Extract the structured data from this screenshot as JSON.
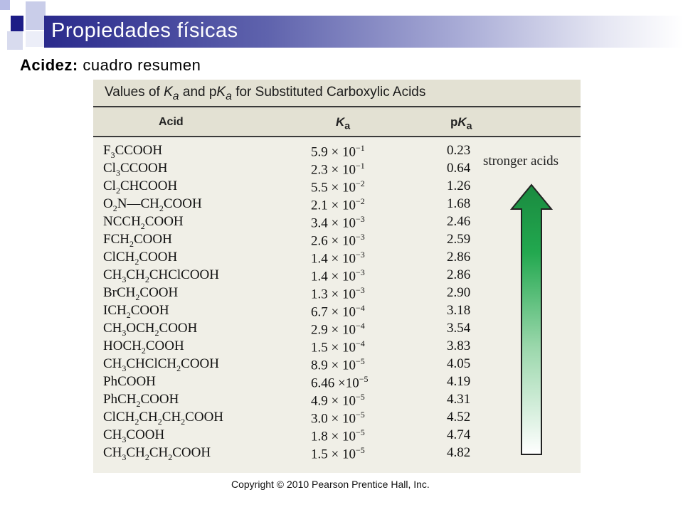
{
  "slide": {
    "title": "Propiedades  físicas",
    "subtitle_bold": "Acidez:",
    "subtitle_rest": " cuadro resumen",
    "copyright": "Copyright © 2010 Pearson Prentice Hall, Inc."
  },
  "table": {
    "title_prefix": "Values of ",
    "title_ka": "K",
    "title_ka_sub": "a",
    "title_mid": " and p",
    "title_pka": "K",
    "title_pka_sub": "a",
    "title_suffix": " for Substituted Carboxylic Acids",
    "headers": {
      "acid": "Acid",
      "ka": "K",
      "ka_sub": "a",
      "pka_p": "p",
      "pka": "K",
      "pka_sub": "a"
    },
    "annotation": "stronger acids",
    "rows": [
      {
        "acid": "F<sub>3</sub>CCOOH",
        "mant": "5.9",
        "exp": "−1",
        "pka": "0.23"
      },
      {
        "acid": "Cl<sub>3</sub>CCOOH",
        "mant": "2.3",
        "exp": "−1",
        "pka": "0.64"
      },
      {
        "acid": "Cl<sub>2</sub>CHCOOH",
        "mant": "5.5",
        "exp": "−2",
        "pka": "1.26"
      },
      {
        "acid": "O<sub>2</sub>N—CH<sub>2</sub>COOH",
        "mant": "2.1",
        "exp": "−2",
        "pka": "1.68"
      },
      {
        "acid": "NCCH<sub>2</sub>COOH",
        "mant": "3.4",
        "exp": "−3",
        "pka": "2.46"
      },
      {
        "acid": "FCH<sub>2</sub>COOH",
        "mant": "2.6",
        "exp": "−3",
        "pka": "2.59"
      },
      {
        "acid": "ClCH<sub>2</sub>COOH",
        "mant": "1.4",
        "exp": "−3",
        "pka": "2.86"
      },
      {
        "acid": "CH<sub>3</sub>CH<sub>2</sub>CHClCOOH",
        "mant": "1.4",
        "exp": "−3",
        "pka": "2.86"
      },
      {
        "acid": "BrCH<sub>2</sub>COOH",
        "mant": "1.3",
        "exp": "−3",
        "pka": "2.90"
      },
      {
        "acid": "ICH<sub>2</sub>COOH",
        "mant": "6.7",
        "exp": "−4",
        "pka": "3.18"
      },
      {
        "acid": "CH<sub>3</sub>OCH<sub>2</sub>COOH",
        "mant": "2.9",
        "exp": "−4",
        "pka": "3.54"
      },
      {
        "acid": "HOCH<sub>2</sub>COOH",
        "mant": "1.5",
        "exp": "−4",
        "pka": "3.83"
      },
      {
        "acid": "CH<sub>3</sub>CHClCH<sub>2</sub>COOH",
        "mant": "8.9",
        "exp": "−5",
        "pka": "4.05"
      },
      {
        "acid": "PhCOOH",
        "mant": "6.46",
        "exp": "−5",
        "pka": "4.19"
      },
      {
        "acid": "PhCH<sub>2</sub>COOH",
        "mant": "4.9",
        "exp": "−5",
        "pka": "4.31"
      },
      {
        "acid": "ClCH<sub>2</sub>CH<sub>2</sub>CH<sub>2</sub>COOH",
        "mant": "3.0",
        "exp": "−5",
        "pka": "4.52"
      },
      {
        "acid": "CH<sub>3</sub>COOH",
        "mant": "1.8",
        "exp": "−5",
        "pka": "4.74"
      },
      {
        "acid": "CH<sub>3</sub>CH<sub>2</sub>CH<sub>2</sub>COOH",
        "mant": "1.5",
        "exp": "−5",
        "pka": "4.82"
      }
    ]
  },
  "colors": {
    "title_bar_dark": "#2a2a8c",
    "arrow_green": "#1aa34a",
    "card_bg": "#f0efe7"
  },
  "icons": {
    "arrow": "up-arrow-gradient-icon"
  }
}
